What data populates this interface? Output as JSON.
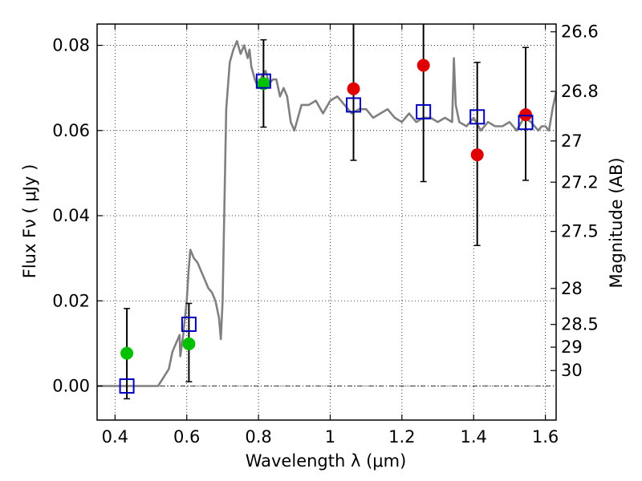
{
  "chart_data": {
    "type": "scatter",
    "xlabel": "Wavelength  λ (μm)",
    "ylabel_left": "Flux  Fν  ( μJy )",
    "ylabel_right": "Magnitude (AB)",
    "xlim": [
      0.35,
      1.63
    ],
    "ylim": [
      -0.008,
      0.085
    ],
    "x_ticks": [
      0.4,
      0.6,
      0.8,
      1.0,
      1.2,
      1.4,
      1.6
    ],
    "x_tick_labels": [
      "0.4",
      "0.6",
      "0.8",
      "1",
      "1.2",
      "1.4",
      "1.6"
    ],
    "y_ticks": [
      0.0,
      0.02,
      0.04,
      0.06,
      0.08
    ],
    "y_tick_labels": [
      "0.00",
      "0.02",
      "0.04",
      "0.06",
      "0.08"
    ],
    "right_ticks": [
      {
        "mag": 26.6,
        "label": "26.6"
      },
      {
        "mag": 26.8,
        "label": "26.8"
      },
      {
        "mag": 27.0,
        "label": "27"
      },
      {
        "mag": 27.2,
        "label": "27.2"
      },
      {
        "mag": 27.5,
        "label": "27.5"
      },
      {
        "mag": 28.0,
        "label": "28"
      },
      {
        "mag": 28.5,
        "label": "28.5"
      },
      {
        "mag": 29.0,
        "label": "29"
      },
      {
        "mag": 30.0,
        "label": "30"
      }
    ],
    "grid": true,
    "colors": {
      "sed": "#808080",
      "green": "#00c000",
      "red": "#e00000",
      "model": "#0000c0",
      "errorbar": "#000000"
    },
    "series": [
      {
        "name": "SED model spectrum",
        "kind": "line",
        "x": [
          0.35,
          0.52,
          0.55,
          0.56,
          0.57,
          0.58,
          0.582,
          0.59,
          0.595,
          0.6,
          0.605,
          0.61,
          0.62,
          0.63,
          0.64,
          0.65,
          0.66,
          0.67,
          0.68,
          0.69,
          0.695,
          0.7,
          0.71,
          0.72,
          0.73,
          0.74,
          0.75,
          0.76,
          0.77,
          0.775,
          0.78,
          0.79,
          0.8,
          0.81,
          0.82,
          0.83,
          0.84,
          0.85,
          0.86,
          0.87,
          0.88,
          0.89,
          0.9,
          0.92,
          0.94,
          0.96,
          0.98,
          1.0,
          1.02,
          1.04,
          1.06,
          1.08,
          1.1,
          1.12,
          1.14,
          1.16,
          1.18,
          1.2,
          1.22,
          1.24,
          1.26,
          1.28,
          1.3,
          1.32,
          1.34,
          1.345,
          1.35,
          1.36,
          1.38,
          1.4,
          1.42,
          1.44,
          1.46,
          1.48,
          1.5,
          1.52,
          1.54,
          1.56,
          1.58,
          1.59,
          1.6,
          1.61,
          1.62,
          1.63
        ],
        "y": [
          0.0,
          0.0,
          0.004,
          0.008,
          0.01,
          0.012,
          0.007,
          0.012,
          0.016,
          0.02,
          0.027,
          0.032,
          0.03,
          0.029,
          0.027,
          0.025,
          0.023,
          0.022,
          0.02,
          0.016,
          0.011,
          0.02,
          0.065,
          0.076,
          0.079,
          0.081,
          0.078,
          0.08,
          0.077,
          0.079,
          0.075,
          0.072,
          0.07,
          0.073,
          0.074,
          0.071,
          0.072,
          0.072,
          0.068,
          0.07,
          0.068,
          0.062,
          0.06,
          0.066,
          0.066,
          0.067,
          0.064,
          0.067,
          0.068,
          0.066,
          0.064,
          0.065,
          0.065,
          0.063,
          0.064,
          0.065,
          0.063,
          0.062,
          0.064,
          0.062,
          0.063,
          0.063,
          0.062,
          0.063,
          0.062,
          0.077,
          0.066,
          0.062,
          0.061,
          0.063,
          0.06,
          0.062,
          0.061,
          0.061,
          0.062,
          0.06,
          0.063,
          0.062,
          0.06,
          0.061,
          0.061,
          0.06,
          0.065,
          0.069
        ]
      },
      {
        "name": "Green observed",
        "kind": "marker",
        "x": [
          0.433,
          0.606,
          0.814
        ],
        "y": [
          0.0077,
          0.0099,
          0.071
        ],
        "yerr_low": [
          0.0107,
          0.0089,
          0.0102
        ],
        "yerr_high": [
          0.0105,
          0.0095,
          0.0103
        ]
      },
      {
        "name": "Red observed",
        "kind": "marker",
        "x": [
          1.065,
          1.26,
          1.41,
          1.545
        ],
        "y": [
          0.0698,
          0.0753,
          0.0543,
          0.0637
        ],
        "yerr_low": [
          0.0168,
          0.0273,
          0.0213,
          0.0154
        ],
        "yerr_high": [
          0.0262,
          0.0152,
          0.0217,
          0.0158
        ]
      },
      {
        "name": "Model bandpass",
        "kind": "square",
        "x": [
          0.433,
          0.606,
          0.814,
          1.065,
          1.26,
          1.41,
          1.545
        ],
        "y": [
          0.0,
          0.0145,
          0.0716,
          0.066,
          0.0644,
          0.0632,
          0.0619
        ]
      }
    ]
  }
}
